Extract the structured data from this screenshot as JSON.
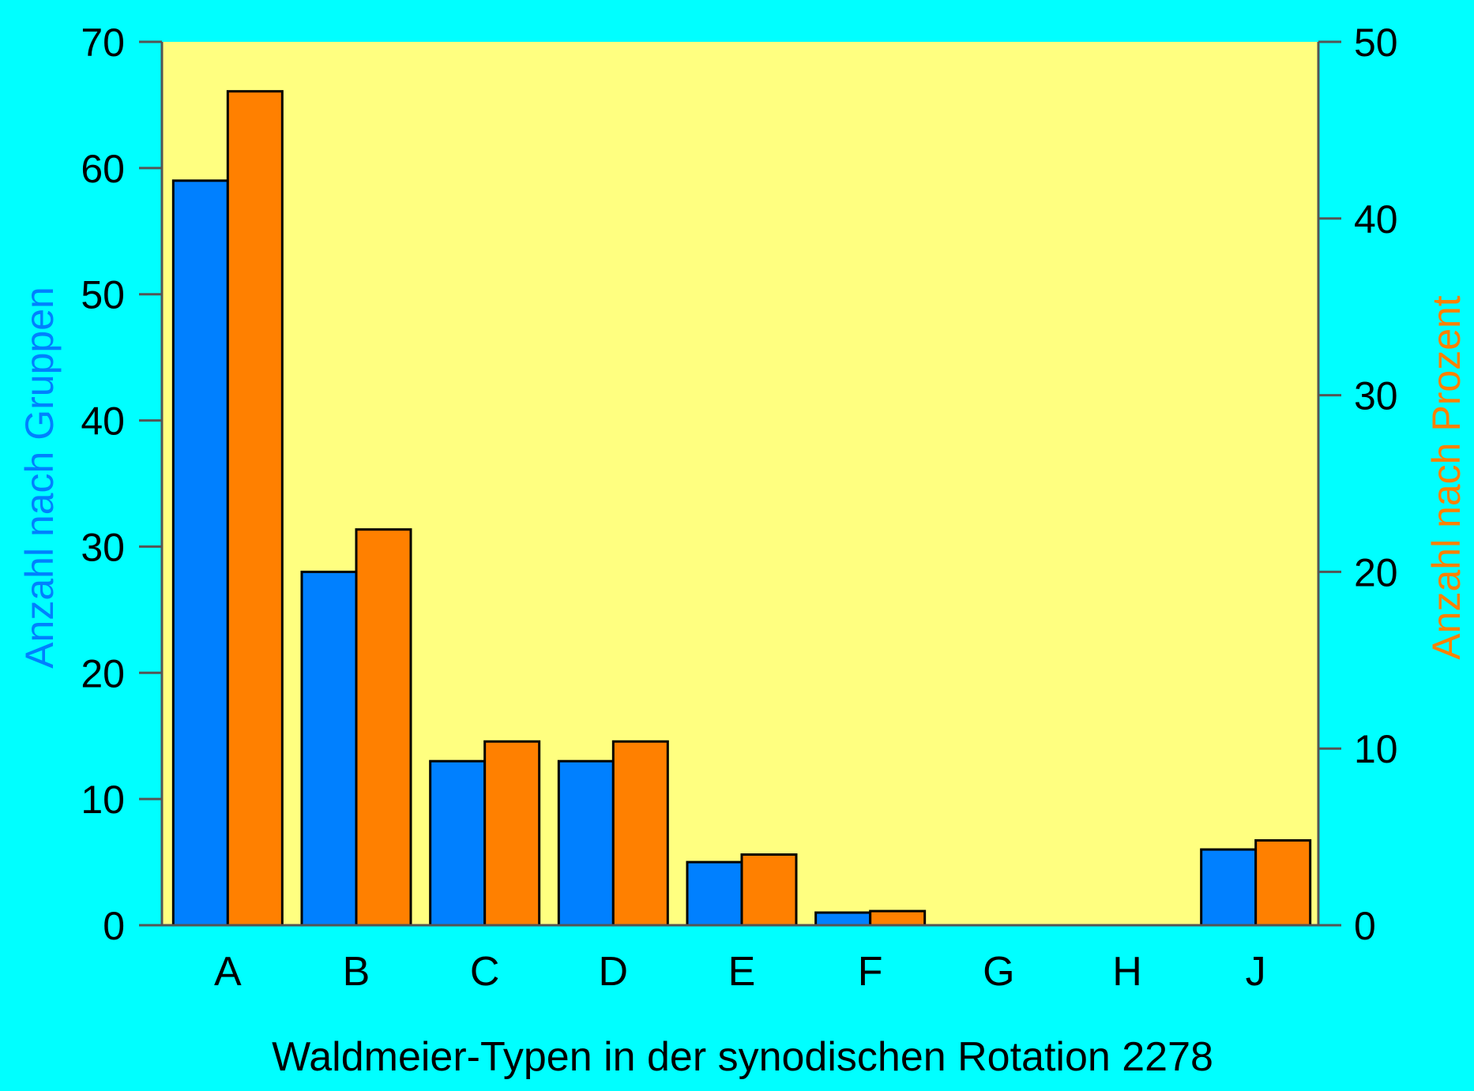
{
  "chart_data": {
    "type": "bar",
    "title": "",
    "xlabel": "Waldmeier-Typen in der synodischen Rotation 2278",
    "ylabel": "Anzahl nach Gruppen",
    "ylabel_right": "Anzahl nach Prozent",
    "categories": [
      "A",
      "B",
      "C",
      "D",
      "E",
      "F",
      "G",
      "H",
      "J"
    ],
    "series": [
      {
        "name": "Anzahl nach Gruppen",
        "axis": "left",
        "color": "#0080ff",
        "values": [
          59,
          28,
          13,
          13,
          5,
          1,
          0,
          0,
          6
        ]
      },
      {
        "name": "Anzahl nach Prozent",
        "axis": "right",
        "color": "#ff8000",
        "values": [
          47.2,
          22.4,
          10.4,
          10.4,
          4.0,
          0.8,
          0,
          0,
          4.8
        ]
      }
    ],
    "ylim": [
      0,
      70
    ],
    "ylim_right": [
      0,
      50
    ],
    "yticks": [
      0,
      10,
      20,
      30,
      40,
      50,
      60,
      70
    ],
    "yticks_right": [
      0,
      10,
      20,
      30,
      40,
      50
    ],
    "grid": false,
    "legend": "none"
  },
  "colors": {
    "background": "#00ffff",
    "plot_background": "#ffff80",
    "left_axis_title": "#0080ff",
    "right_axis_title": "#ff8000",
    "axis_line": "#555555"
  }
}
